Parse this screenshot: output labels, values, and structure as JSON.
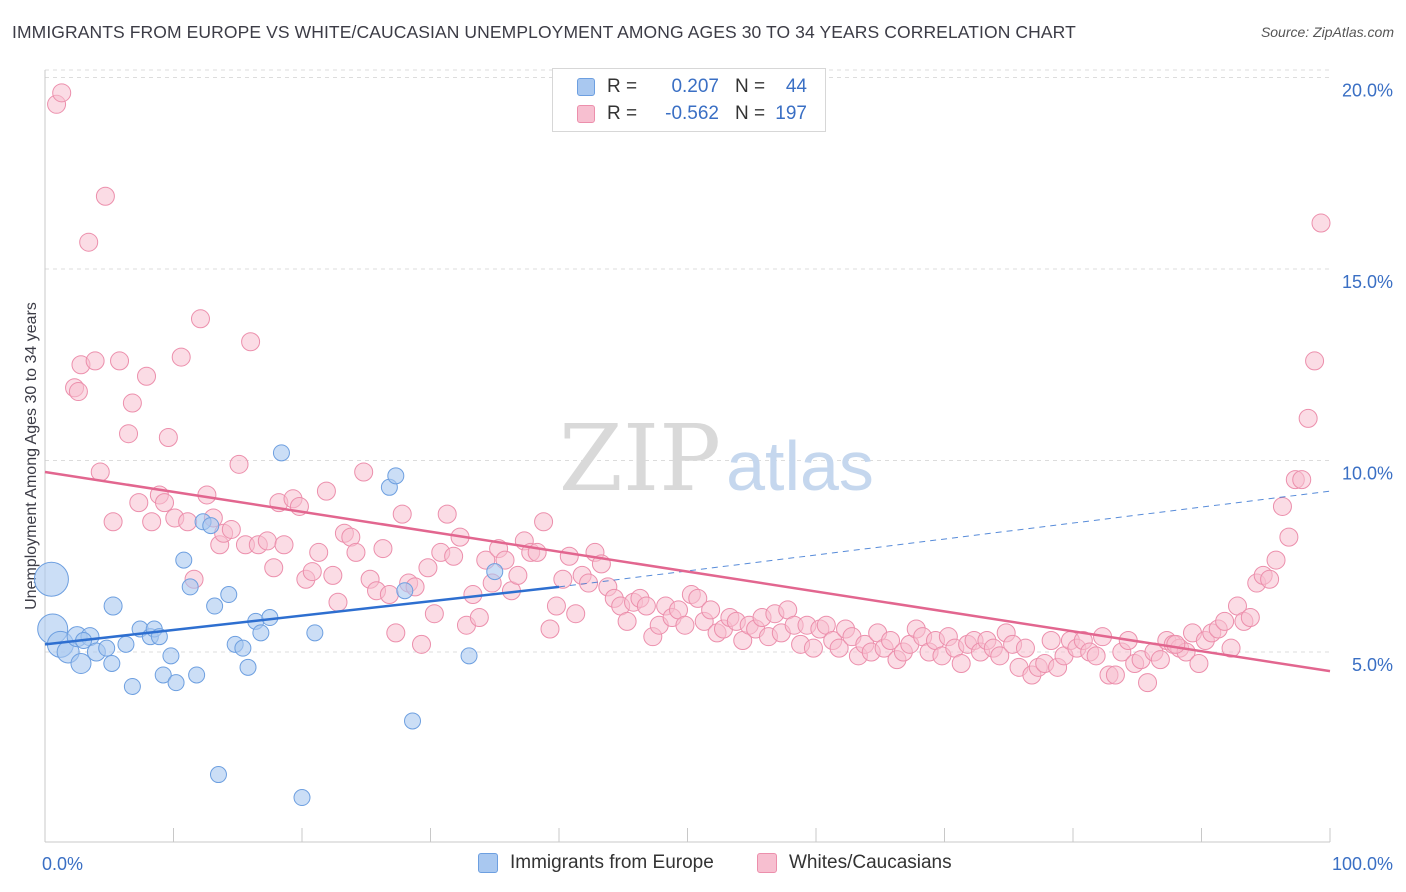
{
  "title": "IMMIGRANTS FROM EUROPE VS WHITE/CAUCASIAN UNEMPLOYMENT AMONG AGES 30 TO 34 YEARS CORRELATION CHART",
  "source": "Source: ZipAtlas.com",
  "watermark": {
    "zip": "ZIP",
    "atlas": "atlas"
  },
  "legend": {
    "rows": [
      {
        "r_label": "R =",
        "r_value": "0.207",
        "n_label": "N =",
        "n_value": "44"
      },
      {
        "r_label": "R =",
        "r_value": "-0.562",
        "n_label": "N =",
        "n_value": "197"
      }
    ]
  },
  "bottom_legend": [
    "Immigrants from Europe",
    "Whites/Caucasians"
  ],
  "chart_data": {
    "type": "scatter",
    "title": "IMMIGRANTS FROM EUROPE VS WHITE/CAUCASIAN UNEMPLOYMENT AMONG AGES 30 TO 34 YEARS CORRELATION CHART",
    "xlabel": "",
    "ylabel": "Unemployment Among Ages 30 to 34 years",
    "xlim": [
      0,
      100
    ],
    "ylim": [
      0,
      20.8
    ],
    "x_tick_labels": [
      "0.0%",
      "100.0%"
    ],
    "y_ticks": [
      5,
      10,
      15,
      20
    ],
    "y_tick_labels": [
      "5.0%",
      "10.0%",
      "15.0%",
      "20.0%"
    ],
    "grid": true,
    "colors": {
      "blue_fill": "#a9c8f0",
      "blue_stroke": "#6d9fe0",
      "blue_line": "#2e6fd0",
      "pink_fill": "#f7bfd0",
      "pink_stroke": "#ec8fac",
      "pink_line": "#e2668f",
      "axis_label": "#3a6fc4",
      "grid": "#dcdcdc"
    },
    "series": [
      {
        "name": "Immigrants from Europe",
        "color": "blue",
        "trend": {
          "x0": 0,
          "y0": 5.2,
          "x1": 40,
          "y1": 6.7,
          "dash_to_x": 100,
          "dash_to_y": 9.2
        },
        "points": [
          [
            0.5,
            6.9,
            17
          ],
          [
            0.6,
            5.6,
            15
          ],
          [
            1.2,
            5.2,
            13
          ],
          [
            1.8,
            5.0,
            11
          ],
          [
            2.5,
            5.4,
            10
          ],
          [
            2.8,
            4.7,
            10
          ],
          [
            3.5,
            5.4,
            9
          ],
          [
            4.0,
            5.0,
            9
          ],
          [
            4.8,
            5.1,
            8
          ],
          [
            5.2,
            4.7,
            8
          ],
          [
            5.3,
            6.2,
            9
          ],
          [
            6.3,
            5.2,
            8
          ],
          [
            6.8,
            4.1,
            8
          ],
          [
            7.4,
            5.6,
            8
          ],
          [
            8.2,
            5.4,
            8
          ],
          [
            8.5,
            5.6,
            8
          ],
          [
            8.9,
            5.4,
            8
          ],
          [
            9.2,
            4.4,
            8
          ],
          [
            9.8,
            4.9,
            8
          ],
          [
            10.2,
            4.2,
            8
          ],
          [
            10.8,
            7.4,
            8
          ],
          [
            11.3,
            6.7,
            8
          ],
          [
            11.8,
            4.4,
            8
          ],
          [
            12.3,
            8.4,
            8
          ],
          [
            12.9,
            8.3,
            8
          ],
          [
            13.2,
            6.2,
            8
          ],
          [
            13.5,
            1.8,
            8
          ],
          [
            14.3,
            6.5,
            8
          ],
          [
            14.8,
            5.2,
            8
          ],
          [
            15.4,
            5.1,
            8
          ],
          [
            15.8,
            4.6,
            8
          ],
          [
            16.4,
            5.8,
            8
          ],
          [
            16.8,
            5.5,
            8
          ],
          [
            17.5,
            5.9,
            8
          ],
          [
            18.4,
            10.2,
            8
          ],
          [
            20.0,
            1.2,
            8
          ],
          [
            21.0,
            5.5,
            8
          ],
          [
            26.8,
            9.3,
            8
          ],
          [
            27.3,
            9.6,
            8
          ],
          [
            28.0,
            6.6,
            8
          ],
          [
            28.6,
            3.2,
            8
          ],
          [
            33.0,
            4.9,
            8
          ],
          [
            35.0,
            7.1,
            8
          ],
          [
            3.0,
            5.3,
            8
          ]
        ]
      },
      {
        "name": "Whites/Caucasians",
        "color": "pink",
        "trend": {
          "x0": 0,
          "y0": 9.7,
          "x1": 100,
          "y1": 4.5
        },
        "points": [
          [
            0.9,
            19.3
          ],
          [
            1.3,
            19.6
          ],
          [
            2.3,
            11.9
          ],
          [
            2.6,
            11.8
          ],
          [
            2.8,
            12.5
          ],
          [
            3.4,
            15.7
          ],
          [
            3.9,
            12.6
          ],
          [
            4.3,
            9.7
          ],
          [
            4.7,
            16.9
          ],
          [
            5.3,
            8.4
          ],
          [
            5.8,
            12.6
          ],
          [
            6.5,
            10.7
          ],
          [
            6.8,
            11.5
          ],
          [
            7.3,
            8.9
          ],
          [
            7.9,
            12.2
          ],
          [
            8.3,
            8.4
          ],
          [
            8.9,
            9.1
          ],
          [
            9.3,
            8.9
          ],
          [
            9.6,
            10.6
          ],
          [
            10.1,
            8.5
          ],
          [
            10.6,
            12.7
          ],
          [
            11.1,
            8.4
          ],
          [
            11.6,
            6.9
          ],
          [
            12.1,
            13.7
          ],
          [
            12.6,
            9.1
          ],
          [
            13.1,
            8.5
          ],
          [
            13.6,
            7.8
          ],
          [
            13.9,
            8.1
          ],
          [
            14.5,
            8.2
          ],
          [
            15.1,
            9.9
          ],
          [
            15.6,
            7.8
          ],
          [
            16.0,
            13.1
          ],
          [
            16.6,
            7.8
          ],
          [
            17.3,
            7.9
          ],
          [
            17.8,
            7.2
          ],
          [
            18.2,
            8.9
          ],
          [
            18.6,
            7.8
          ],
          [
            19.3,
            9.0
          ],
          [
            19.8,
            8.8
          ],
          [
            20.3,
            6.9
          ],
          [
            20.8,
            7.1
          ],
          [
            21.3,
            7.6
          ],
          [
            21.9,
            9.2
          ],
          [
            22.4,
            7.0
          ],
          [
            22.8,
            6.3
          ],
          [
            23.3,
            8.1
          ],
          [
            23.8,
            8.0
          ],
          [
            24.2,
            7.6
          ],
          [
            24.8,
            9.7
          ],
          [
            25.3,
            6.9
          ],
          [
            25.8,
            6.6
          ],
          [
            26.3,
            7.7
          ],
          [
            26.8,
            6.5
          ],
          [
            27.3,
            5.5
          ],
          [
            27.8,
            8.6
          ],
          [
            28.3,
            6.8
          ],
          [
            28.8,
            6.7
          ],
          [
            29.3,
            5.2
          ],
          [
            29.8,
            7.2
          ],
          [
            30.3,
            6.0
          ],
          [
            30.8,
            7.6
          ],
          [
            31.3,
            8.6
          ],
          [
            31.8,
            7.5
          ],
          [
            32.3,
            8.0
          ],
          [
            32.8,
            5.7
          ],
          [
            33.3,
            6.5
          ],
          [
            33.8,
            5.9
          ],
          [
            34.3,
            7.4
          ],
          [
            34.8,
            6.8
          ],
          [
            35.3,
            7.7
          ],
          [
            35.8,
            7.4
          ],
          [
            36.3,
            6.6
          ],
          [
            36.8,
            7.0
          ],
          [
            37.3,
            7.9
          ],
          [
            37.8,
            7.6
          ],
          [
            38.3,
            7.6
          ],
          [
            38.8,
            8.4
          ],
          [
            39.3,
            5.6
          ],
          [
            39.8,
            6.2
          ],
          [
            40.3,
            6.9
          ],
          [
            40.8,
            7.5
          ],
          [
            41.3,
            6.0
          ],
          [
            41.8,
            7.0
          ],
          [
            42.3,
            6.8
          ],
          [
            42.8,
            7.6
          ],
          [
            43.3,
            7.3
          ],
          [
            43.8,
            6.7
          ],
          [
            44.3,
            6.4
          ],
          [
            44.8,
            6.2
          ],
          [
            45.3,
            5.8
          ],
          [
            45.8,
            6.3
          ],
          [
            46.3,
            6.4
          ],
          [
            46.8,
            6.2
          ],
          [
            47.3,
            5.4
          ],
          [
            47.8,
            5.7
          ],
          [
            48.3,
            6.2
          ],
          [
            48.8,
            5.9
          ],
          [
            49.3,
            6.1
          ],
          [
            49.8,
            5.7
          ],
          [
            50.3,
            6.5
          ],
          [
            50.8,
            6.4
          ],
          [
            51.3,
            5.8
          ],
          [
            51.8,
            6.1
          ],
          [
            52.3,
            5.5
          ],
          [
            52.8,
            5.6
          ],
          [
            53.3,
            5.9
          ],
          [
            53.8,
            5.8
          ],
          [
            54.3,
            5.3
          ],
          [
            54.8,
            5.7
          ],
          [
            55.3,
            5.6
          ],
          [
            55.8,
            5.9
          ],
          [
            56.3,
            5.4
          ],
          [
            56.8,
            6.0
          ],
          [
            57.3,
            5.5
          ],
          [
            57.8,
            6.1
          ],
          [
            58.3,
            5.7
          ],
          [
            58.8,
            5.2
          ],
          [
            59.3,
            5.7
          ],
          [
            59.8,
            5.1
          ],
          [
            60.3,
            5.6
          ],
          [
            60.8,
            5.7
          ],
          [
            61.3,
            5.3
          ],
          [
            61.8,
            5.1
          ],
          [
            62.3,
            5.6
          ],
          [
            62.8,
            5.4
          ],
          [
            63.3,
            4.9
          ],
          [
            63.8,
            5.2
          ],
          [
            64.3,
            5.0
          ],
          [
            64.8,
            5.5
          ],
          [
            65.3,
            5.1
          ],
          [
            65.8,
            5.3
          ],
          [
            66.3,
            4.8
          ],
          [
            66.8,
            5.0
          ],
          [
            67.3,
            5.2
          ],
          [
            67.8,
            5.6
          ],
          [
            68.3,
            5.4
          ],
          [
            68.8,
            5.0
          ],
          [
            69.3,
            5.3
          ],
          [
            69.8,
            4.9
          ],
          [
            70.3,
            5.4
          ],
          [
            70.8,
            5.1
          ],
          [
            71.3,
            4.7
          ],
          [
            71.8,
            5.2
          ],
          [
            72.3,
            5.3
          ],
          [
            72.8,
            5.0
          ],
          [
            73.3,
            5.3
          ],
          [
            73.8,
            5.1
          ],
          [
            74.3,
            4.9
          ],
          [
            74.8,
            5.5
          ],
          [
            75.3,
            5.2
          ],
          [
            75.8,
            4.6
          ],
          [
            76.3,
            5.1
          ],
          [
            76.8,
            4.4
          ],
          [
            77.3,
            4.6
          ],
          [
            77.8,
            4.7
          ],
          [
            78.3,
            5.3
          ],
          [
            78.8,
            4.6
          ],
          [
            79.3,
            4.9
          ],
          [
            79.8,
            5.3
          ],
          [
            80.3,
            5.1
          ],
          [
            80.8,
            5.3
          ],
          [
            81.3,
            5.0
          ],
          [
            81.8,
            4.9
          ],
          [
            82.3,
            5.4
          ],
          [
            82.8,
            4.4
          ],
          [
            83.3,
            4.4
          ],
          [
            83.8,
            5.0
          ],
          [
            84.3,
            5.3
          ],
          [
            84.8,
            4.7
          ],
          [
            85.3,
            4.8
          ],
          [
            85.8,
            4.2
          ],
          [
            86.3,
            5.0
          ],
          [
            86.8,
            4.8
          ],
          [
            87.3,
            5.3
          ],
          [
            87.8,
            5.2
          ],
          [
            88.3,
            5.1
          ],
          [
            88.8,
            5.0
          ],
          [
            89.3,
            5.5
          ],
          [
            89.8,
            4.7
          ],
          [
            90.3,
            5.3
          ],
          [
            90.8,
            5.5
          ],
          [
            91.3,
            5.6
          ],
          [
            91.8,
            5.8
          ],
          [
            92.3,
            5.1
          ],
          [
            92.8,
            6.2
          ],
          [
            93.3,
            5.8
          ],
          [
            93.8,
            5.9
          ],
          [
            94.3,
            6.8
          ],
          [
            94.8,
            7.0
          ],
          [
            95.3,
            6.9
          ],
          [
            95.8,
            7.4
          ],
          [
            96.3,
            8.8
          ],
          [
            96.8,
            8.0
          ],
          [
            97.3,
            9.5
          ],
          [
            97.8,
            9.5
          ],
          [
            98.3,
            11.1
          ],
          [
            98.8,
            12.6
          ],
          [
            99.3,
            16.2
          ],
          [
            88.0,
            5.2
          ]
        ]
      }
    ]
  }
}
